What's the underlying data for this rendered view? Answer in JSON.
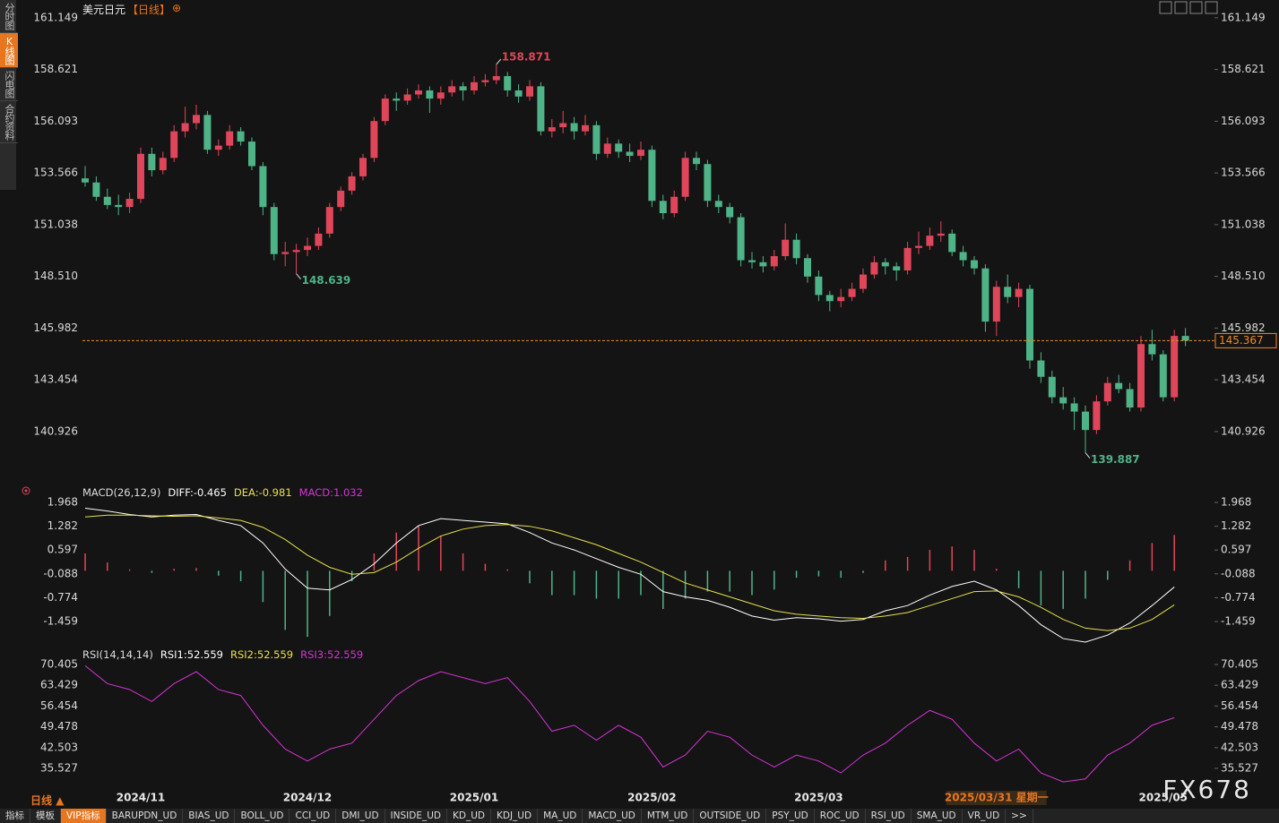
{
  "sidebar": {
    "tabs": [
      "分时图",
      "K线图",
      "闪电图",
      "合约资料"
    ],
    "active": 1
  },
  "chart_data": [
    {
      "type": "candlestick",
      "title": "美元日元",
      "period": "【日线】",
      "up_color": "#e0465a",
      "down_color": "#4fb388",
      "categories": [
        null,
        null,
        null,
        null,
        null,
        "2024/11",
        null,
        null,
        null,
        null,
        null,
        null,
        null,
        null,
        null,
        null,
        null,
        null,
        null,
        null,
        "2024/12",
        null,
        null,
        null,
        null,
        null,
        null,
        null,
        null,
        null,
        null,
        null,
        null,
        null,
        null,
        "2025/01",
        null,
        null,
        null,
        null,
        null,
        null,
        null,
        null,
        null,
        null,
        null,
        null,
        null,
        null,
        null,
        "2025/02",
        null,
        null,
        null,
        null,
        null,
        null,
        null,
        null,
        null,
        null,
        null,
        null,
        null,
        null,
        "2025/03",
        null,
        null,
        null,
        null,
        null,
        null,
        null,
        null,
        null,
        null,
        null,
        null,
        null,
        null,
        null,
        "2025/03/31 星期一",
        null,
        null,
        null,
        null,
        null,
        null,
        null,
        null,
        null,
        null,
        null,
        null,
        null,
        null,
        "2025/05",
        null,
        null
      ],
      "candles": [
        [
          153.3,
          153.9,
          152.9,
          153.1
        ],
        [
          153.1,
          153.4,
          152.2,
          152.4
        ],
        [
          152.4,
          152.8,
          151.8,
          152.0
        ],
        [
          152.0,
          152.5,
          151.5,
          151.9
        ],
        [
          151.9,
          152.6,
          151.6,
          152.3
        ],
        [
          152.3,
          154.8,
          152.1,
          154.5
        ],
        [
          154.5,
          154.8,
          153.4,
          153.7
        ],
        [
          153.7,
          154.6,
          153.5,
          154.3
        ],
        [
          154.3,
          155.9,
          154.1,
          155.6
        ],
        [
          155.6,
          156.8,
          155.3,
          156.0
        ],
        [
          156.0,
          156.9,
          155.7,
          156.4
        ],
        [
          156.4,
          156.6,
          154.5,
          154.7
        ],
        [
          154.7,
          155.2,
          154.4,
          154.9
        ],
        [
          154.9,
          155.9,
          154.7,
          155.6
        ],
        [
          155.6,
          155.8,
          154.9,
          155.1
        ],
        [
          155.1,
          155.3,
          153.7,
          153.9
        ],
        [
          153.9,
          154.1,
          151.5,
          151.9
        ],
        [
          151.9,
          152.1,
          149.3,
          149.6
        ],
        [
          149.6,
          150.2,
          149.0,
          149.7
        ],
        [
          149.7,
          150.1,
          148.639,
          149.8
        ],
        [
          149.8,
          150.4,
          149.5,
          150.0
        ],
        [
          150.0,
          150.9,
          149.8,
          150.6
        ],
        [
          150.6,
          152.1,
          150.4,
          151.9
        ],
        [
          151.9,
          152.9,
          151.7,
          152.7
        ],
        [
          152.7,
          153.6,
          152.5,
          153.4
        ],
        [
          153.4,
          154.5,
          153.2,
          154.3
        ],
        [
          154.3,
          156.3,
          154.1,
          156.1
        ],
        [
          156.1,
          157.4,
          155.9,
          157.2
        ],
        [
          157.2,
          157.5,
          156.6,
          157.1
        ],
        [
          157.1,
          157.7,
          156.9,
          157.4
        ],
        [
          157.4,
          157.9,
          157.2,
          157.6
        ],
        [
          157.6,
          157.8,
          156.5,
          157.2
        ],
        [
          157.2,
          157.8,
          156.9,
          157.5
        ],
        [
          157.5,
          158.1,
          157.3,
          157.8
        ],
        [
          157.8,
          158.0,
          157.1,
          157.6
        ],
        [
          157.6,
          158.3,
          157.4,
          158.0
        ],
        [
          158.0,
          158.4,
          157.8,
          158.1
        ],
        [
          158.1,
          158.871,
          157.9,
          158.3
        ],
        [
          158.3,
          158.5,
          157.3,
          157.6
        ],
        [
          157.6,
          157.9,
          157.0,
          157.3
        ],
        [
          157.3,
          158.1,
          157.1,
          157.8
        ],
        [
          157.8,
          158.0,
          155.4,
          155.6
        ],
        [
          155.6,
          156.2,
          155.3,
          155.8
        ],
        [
          155.8,
          156.6,
          155.5,
          156.0
        ],
        [
          156.0,
          156.3,
          155.2,
          155.6
        ],
        [
          155.6,
          156.4,
          155.4,
          155.9
        ],
        [
          155.9,
          156.1,
          154.2,
          154.5
        ],
        [
          154.5,
          155.3,
          154.3,
          155.0
        ],
        [
          155.0,
          155.2,
          154.3,
          154.6
        ],
        [
          154.6,
          155.0,
          154.1,
          154.4
        ],
        [
          154.4,
          155.1,
          154.2,
          154.7
        ],
        [
          154.7,
          154.9,
          151.9,
          152.2
        ],
        [
          152.2,
          152.5,
          151.3,
          151.6
        ],
        [
          151.6,
          152.7,
          151.4,
          152.4
        ],
        [
          152.4,
          154.6,
          152.2,
          154.3
        ],
        [
          154.3,
          154.6,
          153.7,
          154.0
        ],
        [
          154.0,
          154.2,
          151.9,
          152.2
        ],
        [
          152.2,
          152.5,
          151.6,
          151.9
        ],
        [
          151.9,
          152.1,
          151.1,
          151.4
        ],
        [
          151.4,
          151.6,
          149.0,
          149.3
        ],
        [
          149.3,
          149.7,
          148.9,
          149.2
        ],
        [
          149.2,
          149.5,
          148.7,
          149.0
        ],
        [
          149.0,
          149.8,
          148.8,
          149.5
        ],
        [
          149.5,
          151.1,
          149.3,
          150.3
        ],
        [
          150.3,
          150.6,
          149.1,
          149.4
        ],
        [
          149.4,
          149.6,
          148.2,
          148.5
        ],
        [
          148.5,
          148.8,
          147.3,
          147.6
        ],
        [
          147.6,
          147.8,
          146.8,
          147.3
        ],
        [
          147.3,
          147.9,
          147.0,
          147.5
        ],
        [
          147.5,
          148.2,
          147.3,
          147.9
        ],
        [
          147.9,
          148.9,
          147.7,
          148.6
        ],
        [
          148.6,
          149.5,
          148.4,
          149.2
        ],
        [
          149.2,
          149.4,
          148.6,
          149.0
        ],
        [
          149.0,
          149.2,
          148.3,
          148.8
        ],
        [
          148.8,
          150.2,
          148.6,
          149.9
        ],
        [
          149.9,
          150.7,
          149.6,
          150.0
        ],
        [
          150.0,
          150.9,
          149.8,
          150.5
        ],
        [
          150.5,
          151.2,
          150.2,
          150.6
        ],
        [
          150.6,
          150.8,
          149.5,
          149.7
        ],
        [
          149.7,
          150.0,
          149.0,
          149.3
        ],
        [
          149.3,
          149.5,
          148.6,
          148.9
        ],
        [
          148.9,
          149.1,
          145.8,
          146.3
        ],
        [
          146.3,
          148.3,
          145.6,
          148.0
        ],
        [
          148.0,
          148.6,
          147.2,
          147.5
        ],
        [
          147.5,
          148.2,
          147.0,
          147.9
        ],
        [
          147.9,
          148.1,
          144.0,
          144.4
        ],
        [
          144.4,
          144.8,
          143.3,
          143.6
        ],
        [
          143.6,
          143.9,
          142.3,
          142.6
        ],
        [
          142.6,
          143.1,
          142.0,
          142.3
        ],
        [
          142.3,
          142.6,
          141.0,
          141.9
        ],
        [
          141.9,
          142.2,
          139.887,
          141.0
        ],
        [
          141.0,
          142.7,
          140.8,
          142.4
        ],
        [
          142.4,
          143.6,
          142.2,
          143.3
        ],
        [
          143.3,
          143.7,
          142.8,
          143.0
        ],
        [
          143.0,
          143.3,
          141.9,
          142.1
        ],
        [
          142.1,
          145.6,
          141.9,
          145.2
        ],
        [
          145.2,
          145.9,
          144.4,
          144.7
        ],
        [
          144.7,
          144.9,
          142.4,
          142.6
        ],
        [
          142.6,
          145.9,
          142.4,
          145.6
        ],
        [
          145.6,
          145.982,
          145.1,
          145.367
        ]
      ],
      "ylim": [
        138.6,
        161.8
      ],
      "yticks": [
        161.149,
        158.621,
        156.093,
        153.566,
        151.038,
        {
          "value": 148.51,
          "label": "148.510"
        },
        145.982,
        143.454,
        140.926
      ],
      "high_labels": [
        158.871
      ],
      "low_labels": [
        148.639,
        139.887
      ],
      "last_price": 145.367,
      "last_price_color": "#f08a24"
    },
    {
      "type": "macd",
      "title": "MACD(26,12,9)",
      "up_color": "#e0465a",
      "down_color": "#4fb388",
      "series": [
        {
          "name": "DIFF",
          "color": "#ffffff",
          "current": -0.465,
          "values": [
            1.8,
            1.72,
            1.62,
            1.55,
            1.6,
            1.62,
            1.45,
            1.3,
            0.8,
            0.05,
            -0.5,
            -0.55,
            -0.25,
            0.2,
            0.8,
            1.3,
            1.5,
            1.45,
            1.4,
            1.35,
            1.1,
            0.8,
            0.6,
            0.35,
            0.1,
            -0.1,
            -0.6,
            -0.75,
            -0.85,
            -1.05,
            -1.3,
            -1.42,
            -1.35,
            -1.38,
            -1.45,
            -1.4,
            -1.15,
            -1.0,
            -0.7,
            -0.45,
            -0.3,
            -0.55,
            -1.0,
            -1.55,
            -1.95,
            -2.05,
            -1.85,
            -1.5,
            -1.0,
            -0.465
          ]
        },
        {
          "name": "DEA",
          "color": "#e6e04a",
          "current": -0.981,
          "values": [
            1.55,
            1.6,
            1.6,
            1.58,
            1.57,
            1.58,
            1.52,
            1.45,
            1.25,
            0.9,
            0.45,
            0.1,
            -0.1,
            -0.05,
            0.25,
            0.65,
            1.0,
            1.2,
            1.3,
            1.33,
            1.28,
            1.15,
            0.95,
            0.75,
            0.5,
            0.25,
            -0.05,
            -0.35,
            -0.55,
            -0.75,
            -0.95,
            -1.15,
            -1.25,
            -1.3,
            -1.35,
            -1.37,
            -1.3,
            -1.2,
            -1.0,
            -0.8,
            -0.6,
            -0.58,
            -0.75,
            -1.05,
            -1.4,
            -1.65,
            -1.72,
            -1.65,
            -1.4,
            -0.981
          ]
        },
        {
          "name": "MACD",
          "color": "#d633d6",
          "current": 1.032,
          "type": "histogram",
          "values": [
            0.5,
            0.24,
            0.04,
            -0.06,
            0.06,
            0.08,
            -0.14,
            -0.3,
            -0.9,
            -1.7,
            -1.9,
            -1.3,
            -0.3,
            0.5,
            1.1,
            1.3,
            1.0,
            0.5,
            0.2,
            0.04,
            -0.36,
            -0.7,
            -0.7,
            -0.8,
            -0.8,
            -0.7,
            -1.1,
            -0.8,
            -0.6,
            -0.6,
            -0.7,
            -0.54,
            -0.2,
            -0.16,
            -0.2,
            -0.06,
            0.3,
            0.4,
            0.6,
            0.7,
            0.6,
            0.06,
            -0.5,
            -1.0,
            -1.1,
            -0.8,
            -0.26,
            0.3,
            0.8,
            1.032
          ]
        }
      ],
      "ylim": [
        -2.18,
        2.38
      ],
      "yticks": [
        1.968,
        1.282,
        0.597,
        -0.088,
        -0.774,
        -1.459
      ]
    },
    {
      "type": "line",
      "title": "RSI(14,14,14)",
      "series": [
        {
          "name": "RSI1",
          "color": "#ffffff",
          "current": 52.559
        },
        {
          "name": "RSI2",
          "color": "#e6e04a",
          "current": 52.559
        },
        {
          "name": "RSI3",
          "color": "#d633d6",
          "current": 52.559,
          "values": [
            70,
            64,
            62,
            58,
            64,
            68,
            62,
            60,
            50,
            42,
            38,
            42,
            44,
            52,
            60,
            65,
            68,
            66,
            64,
            66,
            58,
            48,
            50,
            45,
            50,
            46,
            36,
            40,
            48,
            46,
            40,
            36,
            40,
            38,
            34,
            40,
            44,
            50,
            55,
            52,
            44,
            38,
            42,
            34,
            31,
            32,
            40,
            44,
            50,
            52.559
          ]
        }
      ],
      "ylim": [
        27.41,
        75.52
      ],
      "yticks": [
        70.405,
        63.429,
        56.454,
        49.478,
        42.503,
        35.527
      ]
    }
  ],
  "toolbar": {
    "period": "日线",
    "tabs": [
      "指标",
      "模板",
      "VIP指标",
      "BARUPDN_UD",
      "BIAS_UD",
      "BOLL_UD",
      "CCI_UD",
      "DMI_UD",
      "INSIDE_UD",
      "KD_UD",
      "KDJ_UD",
      "MA_UD",
      "MACD_UD",
      "MTM_UD",
      "OUTSIDE_UD",
      "PSY_UD",
      "ROC_UD",
      "RSI_UD",
      "SMA_UD",
      "VR_UD",
      ">>"
    ],
    "active": 2
  },
  "watermark": "FX678"
}
